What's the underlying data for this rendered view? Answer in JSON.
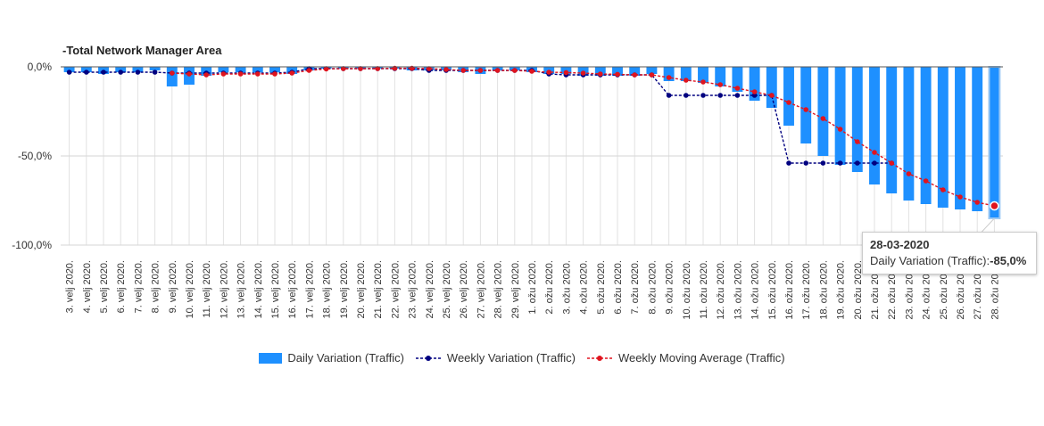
{
  "chart_data": {
    "type": "bar",
    "title": "-Total Network Manager Area",
    "y_ticks": [
      "0,0%",
      "-50,0%",
      "-100,0%"
    ],
    "ylim": [
      -100,
      0
    ],
    "categories": [
      "3. velj 2020.",
      "4. velj 2020.",
      "5. velj 2020.",
      "6. velj 2020.",
      "7. velj 2020.",
      "8. velj 2020.",
      "9. velj 2020.",
      "10. velj 2020.",
      "11. velj 2020.",
      "12. velj 2020.",
      "13. velj 2020.",
      "14. velj 2020.",
      "15. velj 2020.",
      "16. velj 2020.",
      "17. velj 2020.",
      "18. velj 2020.",
      "19. velj 2020.",
      "20. velj 2020.",
      "21. velj 2020.",
      "22. velj 2020.",
      "23. velj 2020.",
      "24. velj 2020.",
      "25. velj 2020.",
      "26. velj 2020.",
      "27. velj 2020.",
      "28. velj 2020.",
      "29. velj 2020.",
      "1. ožu 2020.",
      "2. ožu 2020.",
      "3. ožu 2020.",
      "4. ožu 2020.",
      "5. ožu 2020.",
      "6. ožu 2020.",
      "7. ožu 2020.",
      "8. ožu 2020.",
      "9. ožu 2020.",
      "10. ožu 2020.",
      "11. ožu 2020.",
      "12. ožu 2020.",
      "13. ožu 2020.",
      "14. ožu 2020.",
      "15. ožu 2020.",
      "16. ožu 2020.",
      "17. ožu 2020.",
      "18. ožu 2020.",
      "19. ožu 2020.",
      "20. ožu 2020.",
      "21. ožu 2020.",
      "22. ožu 2020.",
      "23. ožu 2020.",
      "24. ožu 2020.",
      "25. ožu 2020.",
      "26. ožu 2020.",
      "27. ožu 2020.",
      "28. ožu 2020."
    ],
    "series": [
      {
        "name": "Daily Variation (Traffic)",
        "kind": "bar",
        "color": "#1e90ff",
        "values": [
          -3,
          -3,
          -4,
          -3,
          -3,
          -2,
          -11,
          -10,
          -5,
          -3,
          -3,
          -3,
          -3,
          -4,
          -2,
          -1,
          -1,
          -1,
          -1,
          -1,
          -2,
          -2,
          -2,
          -3,
          -4,
          -2,
          -2,
          -3,
          -4,
          -4,
          -5,
          -5,
          -5,
          -5,
          -4,
          -8,
          -8,
          -9,
          -11,
          -14,
          -19,
          -23,
          -33,
          -43,
          -50,
          -55,
          -59,
          -66,
          -71,
          -75,
          -77,
          -79,
          -80,
          -81,
          -85
        ]
      },
      {
        "name": "Weekly Variation (Traffic)",
        "kind": "line",
        "color": "#000080",
        "values": [
          -3,
          -3,
          -3,
          -3,
          -3,
          -3,
          -3.5,
          -3.5,
          -3.5,
          -3.5,
          -3.5,
          -3.5,
          -3.5,
          -3,
          -1,
          -1,
          -1,
          -1,
          -1,
          -1,
          -1,
          -2,
          -2,
          -2,
          -2,
          -2,
          -2,
          -2,
          -4,
          -4.5,
          -4.5,
          -4.5,
          -4.5,
          -4.5,
          -4.5,
          -16,
          -16,
          -16,
          -16,
          -16,
          -16,
          -16,
          -54,
          -54,
          -54,
          -54,
          -54,
          -54,
          -54,
          null,
          null,
          null,
          null,
          null,
          null
        ]
      },
      {
        "name": "Weekly Moving Average (Traffic)",
        "kind": "line",
        "color": "#e0141e",
        "values": [
          null,
          null,
          null,
          null,
          null,
          null,
          -3.5,
          -4,
          -4.5,
          -4,
          -4,
          -4,
          -4,
          -3.5,
          -2,
          -1.2,
          -1,
          -1,
          -1,
          -0.8,
          -0.8,
          -1,
          -1.5,
          -2,
          -2,
          -2,
          -2,
          -2.5,
          -3,
          -3.2,
          -3.5,
          -4,
          -4.2,
          -4.5,
          -4.5,
          -6,
          -7.5,
          -8.5,
          -10,
          -12,
          -14,
          -16,
          -20,
          -24,
          -29,
          -35,
          -42,
          -48,
          -54,
          -60,
          -64,
          -69,
          -73,
          -76,
          -78
        ]
      }
    ],
    "legend_position": "bottom-center",
    "grid": true
  },
  "tooltip": {
    "date": "28-03-2020",
    "label": "Daily Variation (Traffic):",
    "value": "-85,0%"
  },
  "legend": {
    "bar": "Daily Variation (Traffic)",
    "weekly": "Weekly Variation (Traffic)",
    "moving": "Weekly Moving Average (Traffic)"
  }
}
